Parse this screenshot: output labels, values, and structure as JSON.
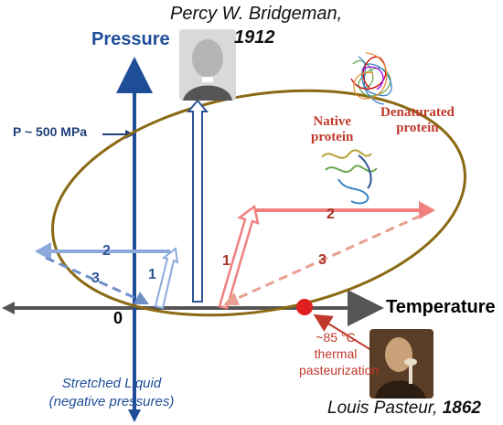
{
  "labels": {
    "bridgeman_name": "Percy W. Bridgeman,",
    "bridgeman_year": "1912",
    "pressure_axis": "Pressure",
    "pressure_value": "P ~ 500 MPa",
    "temperature_axis": "Temperature",
    "origin": "0",
    "native_line1": "Native",
    "native_line2": "protein",
    "denat_line1": "Denaturated",
    "denat_line2": "protein",
    "temp_note_line1": "~85 °C",
    "temp_note_line2": "thermal",
    "temp_note_line3": "pasteurization",
    "stretched_line1": "Stretched Liquid",
    "stretched_line2": "(negative pressures)",
    "pasteur_name": "Louis Pasteur, ",
    "pasteur_year": "1862"
  },
  "arrow_numbers": {
    "blue_1": "1",
    "blue_2": "2",
    "blue_3": "3",
    "red_1": "1",
    "red_2": "2",
    "red_3": "3"
  },
  "colors": {
    "pressure_axis": "#1f4e99",
    "ellipse": "#8b6914",
    "blue_path": "#8eaadb",
    "red_path": "#f08080",
    "marker": "#e02020"
  }
}
